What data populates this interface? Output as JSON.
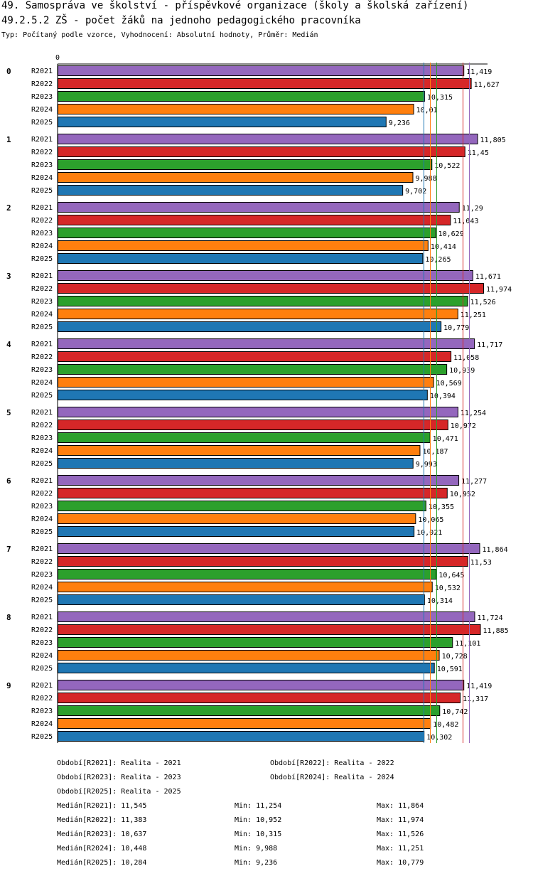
{
  "header": {
    "title": "49. Samospráva ve školství - příspěvkové organizace (školy a školská zařízení)",
    "subtitle": "49.2.5.2 ZŠ - počet žáků na jednoho pedagogického pracovníka",
    "info": "Typ: Počítaný podle vzorce, Vyhodnocení: Absolutní hodnoty, Průměr: Medián"
  },
  "chart_data": {
    "type": "bar",
    "orientation": "horizontal",
    "axis_zero_label": "0",
    "xlim": [
      0,
      11.974
    ],
    "categories": [
      "0",
      "1",
      "2",
      "3",
      "4",
      "5",
      "6",
      "7",
      "8",
      "9"
    ],
    "series": [
      {
        "name": "R2021",
        "color": "#9467bd",
        "values": [
          11.419,
          11.805,
          11.29,
          11.671,
          11.717,
          11.254,
          11.277,
          11.864,
          11.724,
          11.419
        ],
        "labels": [
          "11,419",
          "11,805",
          "11,29",
          "11,671",
          "11,717",
          "11,254",
          "11,277",
          "11,864",
          "11,724",
          "11,419"
        ]
      },
      {
        "name": "R2022",
        "color": "#d62728",
        "values": [
          11.627,
          11.45,
          11.043,
          11.974,
          11.058,
          10.972,
          10.952,
          11.53,
          11.885,
          11.317
        ],
        "labels": [
          "11,627",
          "11,45",
          "11,043",
          "11,974",
          "11,058",
          "10,972",
          "10,952",
          "11,53",
          "11,885",
          "11,317"
        ]
      },
      {
        "name": "R2023",
        "color": "#2ca02c",
        "values": [
          10.315,
          10.522,
          10.629,
          11.526,
          10.939,
          10.471,
          10.355,
          10.645,
          11.101,
          10.742
        ],
        "labels": [
          "10,315",
          "10,522",
          "10,629",
          "11,526",
          "10,939",
          "10,471",
          "10,355",
          "10,645",
          "11,101",
          "10,742"
        ]
      },
      {
        "name": "R2024",
        "color": "#ff7f0e",
        "values": [
          10.01,
          9.988,
          10.414,
          11.251,
          10.569,
          10.187,
          10.065,
          10.532,
          10.728,
          10.482
        ],
        "labels": [
          "10,01",
          "9,988",
          "10,414",
          "11,251",
          "10,569",
          "10,187",
          "10,065",
          "10,532",
          "10,728",
          "10,482"
        ]
      },
      {
        "name": "R2025",
        "color": "#1f77b4",
        "values": [
          9.236,
          9.702,
          10.265,
          10.779,
          10.394,
          9.993,
          10.021,
          10.314,
          10.591,
          10.302
        ],
        "labels": [
          "9,236",
          "9,702",
          "10,265",
          "10,779",
          "10,394",
          "9,993",
          "10,021",
          "10,314",
          "10,591",
          "10,302"
        ]
      }
    ],
    "median_lines": [
      {
        "series": "R2021",
        "value": 11.545,
        "color": "#9467bd"
      },
      {
        "series": "R2022",
        "value": 11.383,
        "color": "#d62728"
      },
      {
        "series": "R2023",
        "value": 10.637,
        "color": "#2ca02c"
      },
      {
        "series": "R2024",
        "value": 10.448,
        "color": "#ff7f0e"
      },
      {
        "series": "R2025",
        "value": 10.284,
        "color": "#1f77b4"
      }
    ]
  },
  "legend": {
    "periods": [
      "Období[R2021]: Realita - 2021",
      "Období[R2022]: Realita - 2022",
      "Období[R2023]: Realita - 2023",
      "Období[R2024]: Realita - 2024",
      "Období[R2025]: Realita - 2025"
    ],
    "stats": [
      {
        "median": "Medián[R2021]: 11,545",
        "min": "Min: 11,254",
        "max": "Max: 11,864"
      },
      {
        "median": "Medián[R2022]: 11,383",
        "min": "Min: 10,952",
        "max": "Max: 11,974"
      },
      {
        "median": "Medián[R2023]: 10,637",
        "min": "Min: 10,315",
        "max": "Max: 11,526"
      },
      {
        "median": "Medián[R2024]: 10,448",
        "min": "Min: 9,988",
        "max": "Max: 11,251"
      },
      {
        "median": "Medián[R2025]: 10,284",
        "min": "Min: 9,236",
        "max": "Max: 10,779"
      }
    ]
  }
}
